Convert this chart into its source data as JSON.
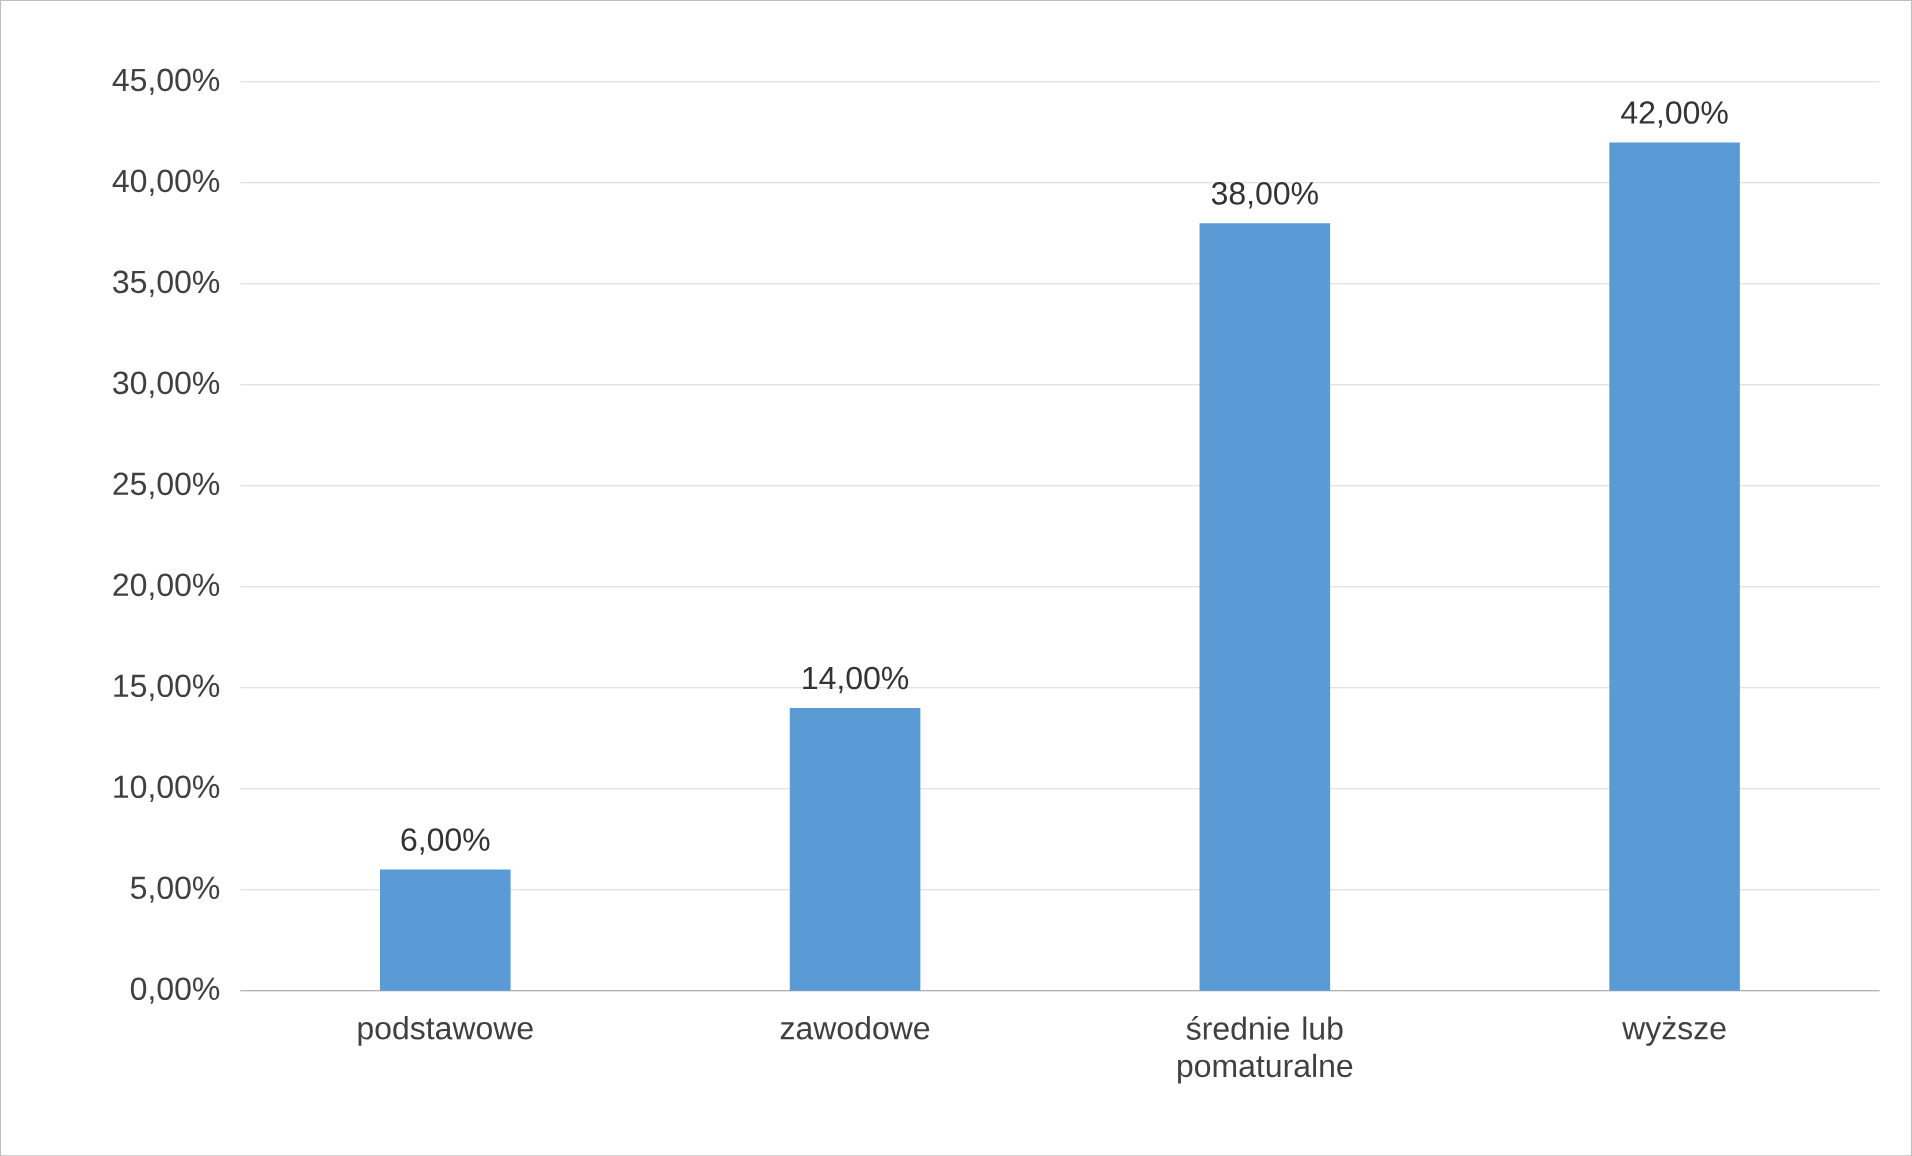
{
  "chart_data": {
    "type": "bar",
    "categories": [
      "podstawowe",
      "zawodowe",
      "średnie lub pomaturalne",
      "wyższe"
    ],
    "values": [
      6,
      14,
      38,
      42
    ],
    "value_labels": [
      "6,00%",
      "14,00%",
      "38,00%",
      "42,00%"
    ],
    "color": "#5b9bd5",
    "ylim": [
      0,
      45
    ],
    "yticks": [
      {
        "value": 0,
        "label": "0,00%"
      },
      {
        "value": 5,
        "label": "5,00%"
      },
      {
        "value": 10,
        "label": "10,00%"
      },
      {
        "value": 15,
        "label": "15,00%"
      },
      {
        "value": 20,
        "label": "20,00%"
      },
      {
        "value": 25,
        "label": "25,00%"
      },
      {
        "value": 30,
        "label": "30,00%"
      },
      {
        "value": 35,
        "label": "35,00%"
      },
      {
        "value": 40,
        "label": "40,00%"
      },
      {
        "value": 45,
        "label": "45,00%"
      }
    ],
    "grid": "y"
  }
}
